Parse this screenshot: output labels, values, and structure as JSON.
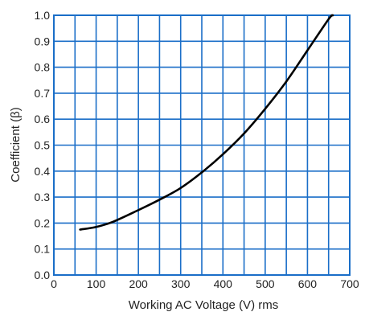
{
  "chart_data": {
    "type": "line",
    "title": "",
    "xlabel": "Working AC Voltage (V) rms",
    "ylabel": "Coefficient (β)",
    "xlim": [
      0,
      700
    ],
    "ylim": [
      0,
      1.0
    ],
    "x_ticks": [
      "0",
      "100",
      "200",
      "300",
      "400",
      "500",
      "600",
      "700"
    ],
    "y_ticks": [
      "0.0",
      "0.1",
      "0.2",
      "0.3",
      "0.4",
      "0.5",
      "0.6",
      "0.7",
      "0.8",
      "0.9",
      "1.0"
    ],
    "grid": true,
    "grid_x_step": 50,
    "grid_y_step": 0.1,
    "series": [
      {
        "x": [
          62,
          100,
          140,
          200,
          250,
          300,
          350,
          400,
          450,
          500,
          550,
          600,
          650,
          660
        ],
        "y": [
          0.175,
          0.185,
          0.205,
          0.25,
          0.29,
          0.335,
          0.395,
          0.465,
          0.545,
          0.64,
          0.745,
          0.865,
          0.985,
          1.0
        ]
      }
    ],
    "colors": {
      "grid": "#1a6ec8",
      "line": "#000000",
      "text": "#222222"
    }
  }
}
